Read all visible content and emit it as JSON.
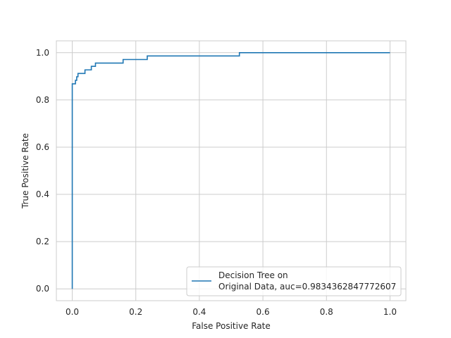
{
  "chart_data": {
    "type": "line",
    "title": "",
    "xlabel": "False Positive Rate",
    "ylabel": "True Positive Rate",
    "xlim": [
      -0.05,
      1.05
    ],
    "ylim": [
      -0.05,
      1.05
    ],
    "xticks": [
      0.0,
      0.2,
      0.4,
      0.6,
      0.8,
      1.0
    ],
    "yticks": [
      0.0,
      0.2,
      0.4,
      0.6,
      0.8,
      1.0
    ],
    "xtick_labels": [
      "0.0",
      "0.2",
      "0.4",
      "0.6",
      "0.8",
      "1.0"
    ],
    "ytick_labels": [
      "0.0",
      "0.2",
      "0.4",
      "0.6",
      "0.8",
      "1.0"
    ],
    "grid": true,
    "legend_position": "lower-right",
    "series": [
      {
        "name": "Decision Tree on\nOriginal Data, auc=0.9834362847772607",
        "name_lines": [
          "Decision Tree on",
          "Original Data, auc=0.9834362847772607"
        ],
        "color": "#1f77b4",
        "x": [
          0.0,
          0.0,
          0.003,
          0.003,
          0.01,
          0.01,
          0.014,
          0.014,
          0.018,
          0.018,
          0.04,
          0.04,
          0.06,
          0.06,
          0.073,
          0.073,
          0.16,
          0.16,
          0.236,
          0.236,
          0.526,
          0.526,
          1.0
        ],
        "y": [
          0.0,
          0.868,
          0.868,
          0.868,
          0.868,
          0.883,
          0.883,
          0.898,
          0.898,
          0.912,
          0.912,
          0.927,
          0.927,
          0.942,
          0.942,
          0.956,
          0.956,
          0.971,
          0.971,
          0.986,
          0.986,
          1.0,
          1.0
        ]
      }
    ]
  },
  "colors": {
    "grid": "#cccccc",
    "frame": "#cccccc",
    "text": "#262626",
    "line": "#1f77b4"
  }
}
